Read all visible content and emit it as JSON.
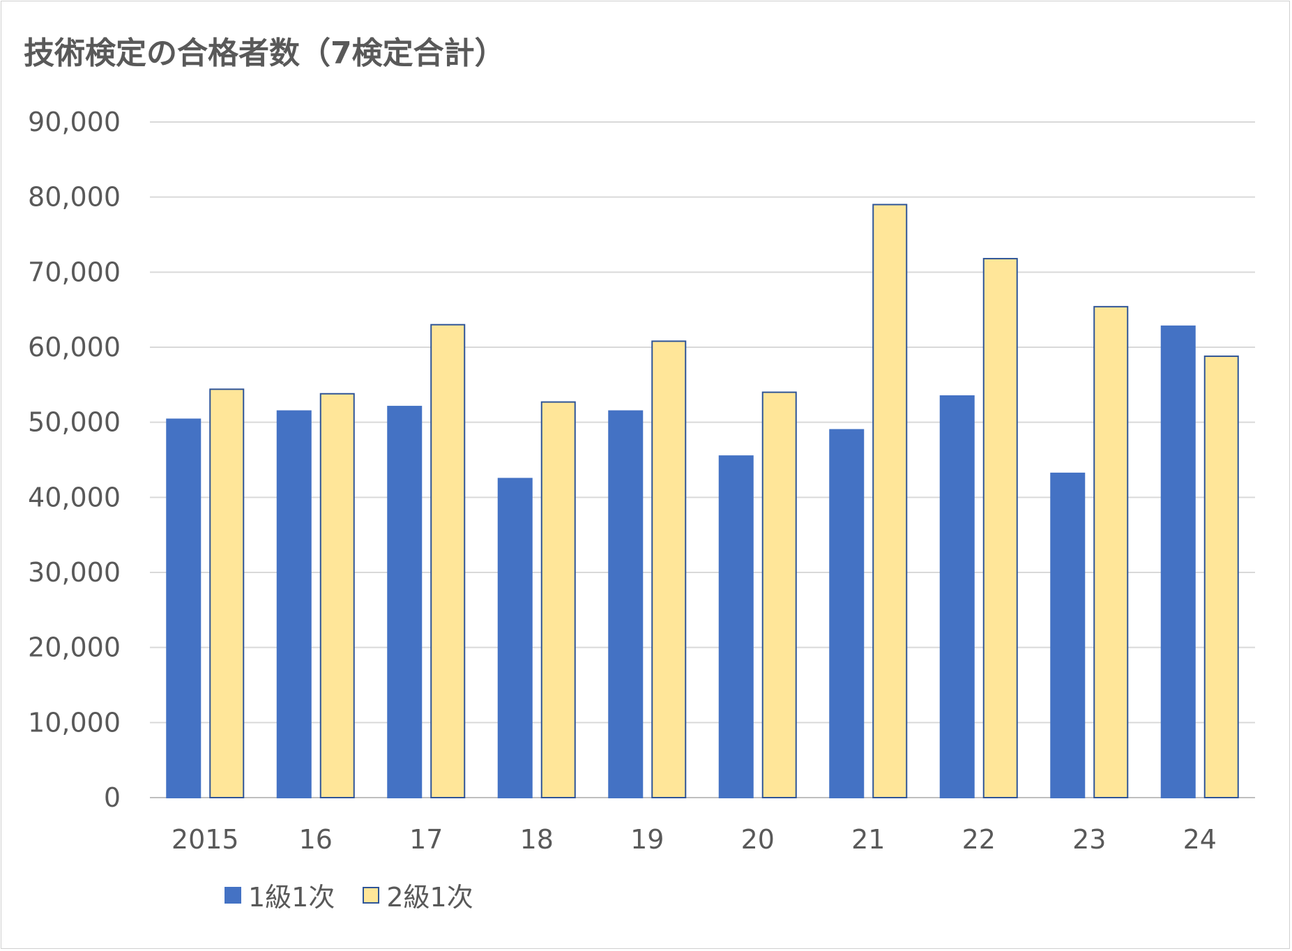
{
  "chart_data": {
    "type": "bar",
    "title": "技術検定の合格者数（7検定合計）",
    "categories": [
      "2015",
      "16",
      "17",
      "18",
      "19",
      "20",
      "21",
      "22",
      "23",
      "24"
    ],
    "series": [
      {
        "name": "1級1次",
        "color": "#4472C4",
        "border": "#4472C4",
        "values": [
          50400,
          51500,
          52100,
          42500,
          51500,
          45500,
          49000,
          53500,
          43200,
          62800
        ]
      },
      {
        "name": "2級1次",
        "color": "#FFE699",
        "border": "#2F5597",
        "values": [
          54400,
          53800,
          63000,
          52700,
          60800,
          54000,
          79000,
          71800,
          65400,
          58800
        ]
      }
    ],
    "yticks": [
      "0",
      "10,000",
      "20,000",
      "30,000",
      "40,000",
      "50,000",
      "60,000",
      "70,000",
      "80,000",
      "90,000"
    ],
    "ylim": [
      0,
      90000
    ],
    "grid": true,
    "legend_position": "bottom-left"
  }
}
